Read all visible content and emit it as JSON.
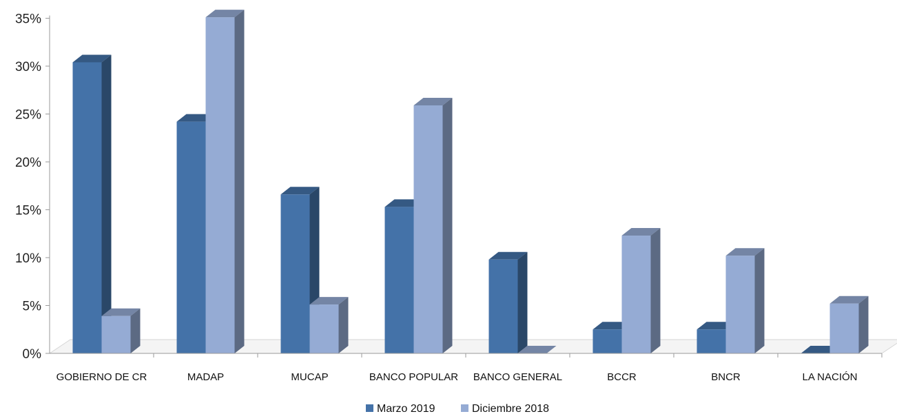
{
  "chart_data": {
    "type": "bar",
    "title": "",
    "xlabel": "",
    "ylabel": "",
    "categories": [
      "GOBIERNO DE CR",
      "MADAP",
      "MUCAP",
      "BANCO POPULAR",
      "BANCO GENERAL",
      "BCCR",
      "BNCR",
      "LA NACIÓN"
    ],
    "series": [
      {
        "name": "Marzo 2019",
        "values": [
          30.4,
          24.2,
          16.6,
          15.3,
          9.8,
          2.5,
          2.5,
          0
        ],
        "color": "#4472a8"
      },
      {
        "name": "Diciembre 2018",
        "values": [
          3.9,
          35.1,
          5.1,
          25.9,
          0,
          12.3,
          10.2,
          5.2
        ],
        "color": "#95abd4"
      }
    ],
    "ylim": [
      0,
      35
    ],
    "yticks": [
      "0%",
      "5%",
      "10%",
      "15%",
      "20%",
      "25%",
      "30%",
      "35%"
    ],
    "legend_position": "bottom-center",
    "grid": false
  }
}
